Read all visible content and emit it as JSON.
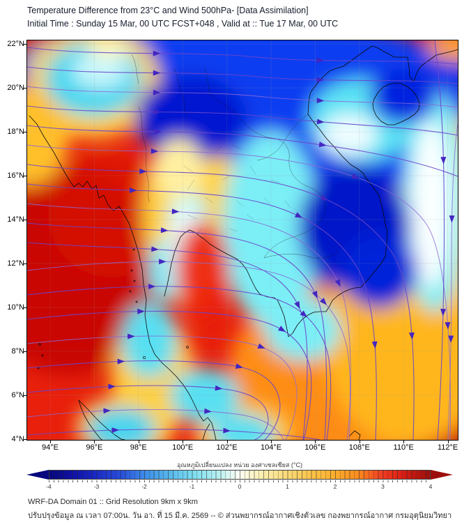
{
  "header": {
    "title_line1": "Temperature Difference from 23°C and Wind 500hPa- [Data Assimilation]",
    "title_line2": "Initial Time : Sunday 15 Mar, 00 UTC FCST+048 , Valid at ::  Tue 17 Mar, 00 UTC"
  },
  "map": {
    "lat_labels": [
      "22°N",
      "20°N",
      "18°N",
      "16°N",
      "14°N",
      "12°N",
      "10°N",
      "8°N",
      "6°N",
      "4°N"
    ],
    "lon_labels": [
      "94°E",
      "96°E",
      "98°E",
      "100°E",
      "102°E",
      "104°E",
      "106°E",
      "108°E",
      "110°E",
      "112°E"
    ],
    "colors": {
      "streamline": "#6946cb",
      "streamline_alt": "#8a67d6",
      "arrow": "#4326c0",
      "coastline": "#0a0a0a",
      "grid": "#9a9a9a"
    }
  },
  "colorbar": {
    "title": "อุณหภูมิเปลี่ยนแปลง หน่วย องศาเซลเซียส (°C)",
    "tick_labels": [
      "-4",
      "-3",
      "-2",
      "-1",
      "0",
      "1",
      "2",
      "3",
      "4"
    ],
    "gradient": [
      [
        "#07077e",
        0
      ],
      [
        "#0d0da0",
        5
      ],
      [
        "#1a2ac8",
        12.5
      ],
      [
        "#2950dc",
        19
      ],
      [
        "#3c8ce8",
        25
      ],
      [
        "#55b4ec",
        31
      ],
      [
        "#7adcf0",
        37.5
      ],
      [
        "#b2eff2",
        44
      ],
      [
        "#fffef2",
        50
      ],
      [
        "#fbeeae",
        56
      ],
      [
        "#fada78",
        62.5
      ],
      [
        "#fbc348",
        69
      ],
      [
        "#fcae2c",
        75
      ],
      [
        "#fb8c1e",
        81
      ],
      [
        "#f23c20",
        87.5
      ],
      [
        "#d91d12",
        93
      ],
      [
        "#9c0f0c",
        100
      ]
    ]
  },
  "footer": {
    "line1": "WRF-DA Domain 01 :: Grid Resolution 9km x 9km",
    "line2": "ปรับปรุงข้อมูล ณ เวลา 07:00น. วัน อา. ที่ 15 มี.ค. 2569 -- © ส่วนพยากรณ์อากาศเชิงตัวเลข กองพยากรณ์อากาศ กรมอุตุนิยมวิทยา"
  }
}
